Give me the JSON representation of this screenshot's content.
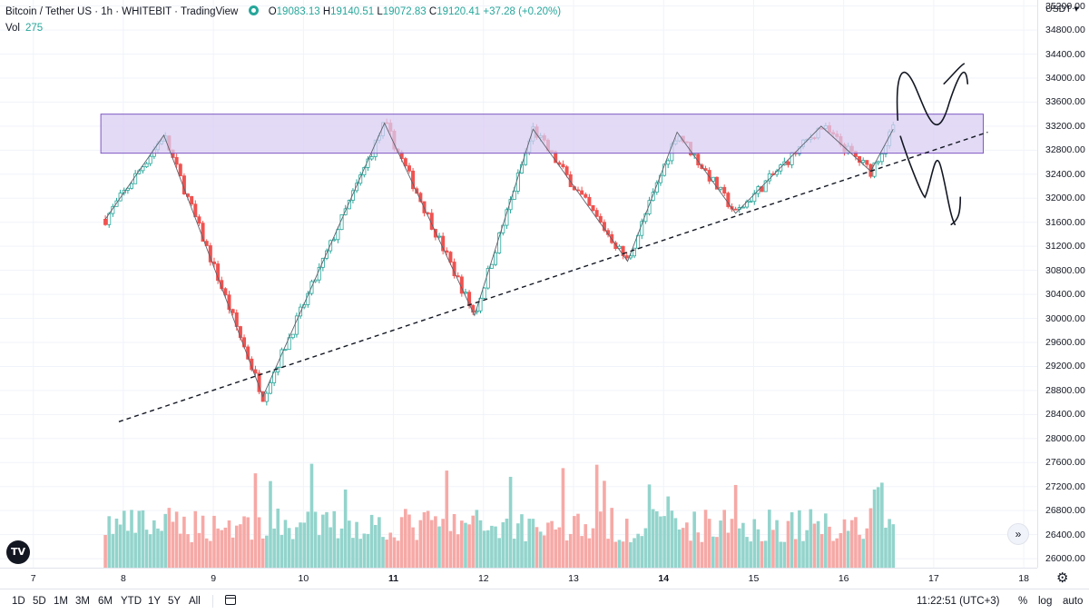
{
  "legend": {
    "symbol": "Bitcoin / Tether US · 1h · WHITEBIT · TradingView",
    "open": "19083.13",
    "high": "19140.51",
    "low": "19072.83",
    "close": "19120.41",
    "change": "+37.28 (+0.20%)",
    "volume_label": "Vol",
    "volume_value": "275"
  },
  "price_axis": {
    "currency": "USDT",
    "labels": [
      "35200.00",
      "34800.00",
      "34400.00",
      "34000.00",
      "33600.00",
      "33200.00",
      "32800.00",
      "32400.00",
      "32000.00",
      "31600.00",
      "31200.00",
      "30800.00",
      "30400.00",
      "30000.00",
      "29600.00",
      "29200.00",
      "28800.00",
      "28400.00",
      "28000.00",
      "27600.00",
      "27200.00",
      "26800.00",
      "26400.00",
      "26000.00"
    ]
  },
  "time_axis": {
    "labels": [
      "7",
      "8",
      "9",
      "10",
      "11",
      "12",
      "13",
      "14",
      "15",
      "16",
      "17",
      "18"
    ],
    "bold_labels": [
      "11",
      "14"
    ]
  },
  "bottom_bar": {
    "ranges": [
      "1D",
      "5D",
      "1M",
      "3M",
      "6M",
      "YTD",
      "1Y",
      "5Y",
      "All"
    ],
    "clock": "11:22:51 (UTC+3)",
    "percent": "%",
    "log": "log",
    "auto": "auto"
  },
  "icons": {
    "logo": "tradingview-logo-icon",
    "calendar": "calendar-icon",
    "settings": "gear-icon",
    "scroll": "scroll-right-icon"
  },
  "colors": {
    "up": "#26a69a",
    "down": "#ef5350",
    "up_volume": "#93d4cc",
    "down_volume": "#f6a9a6",
    "resistance_fill": "#d9cdf3",
    "resistance_stroke": "#7e57c2"
  },
  "chart_data": {
    "type": "candlestick",
    "price_pivots": [
      {
        "day": 7.8,
        "price": 31650
      },
      {
        "day": 8.45,
        "price": 33050
      },
      {
        "day": 9.55,
        "price": 28700
      },
      {
        "day": 10.9,
        "price": 33250
      },
      {
        "day": 11.9,
        "price": 30050
      },
      {
        "day": 12.55,
        "price": 33150
      },
      {
        "day": 13.6,
        "price": 30950
      },
      {
        "day": 14.15,
        "price": 33100
      },
      {
        "day": 14.8,
        "price": 31750
      },
      {
        "day": 15.75,
        "price": 33200
      },
      {
        "day": 16.3,
        "price": 32450
      },
      {
        "day": 16.55,
        "price": 33150
      }
    ],
    "resistance_zone": {
      "low": 32750,
      "high": 33400,
      "from_day": 7.75,
      "to_day": 17.55
    },
    "support_trendline": {
      "from": {
        "day": 7.95,
        "price": 28280
      },
      "to": {
        "day": 17.6,
        "price": 33100
      }
    },
    "y_range": [
      25850,
      35300
    ],
    "x_range": [
      6.63,
      18.15
    ]
  }
}
